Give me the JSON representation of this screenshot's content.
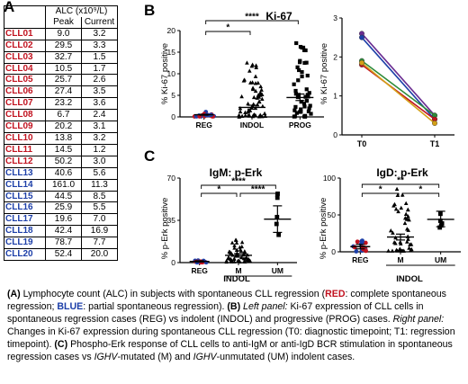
{
  "panels": {
    "a": "A",
    "b": "B",
    "c": "C"
  },
  "table": {
    "header_main": "ALC (x10⁹/L)",
    "header_peak": "Peak",
    "header_current": "Current",
    "rows": [
      {
        "id": "CLL01",
        "peak": "9.0",
        "current": "3.2",
        "group": "red"
      },
      {
        "id": "CLL02",
        "peak": "29.5",
        "current": "3.3",
        "group": "red"
      },
      {
        "id": "CLL03",
        "peak": "32.7",
        "current": "1.5",
        "group": "red"
      },
      {
        "id": "CLL04",
        "peak": "10.5",
        "current": "1.7",
        "group": "red"
      },
      {
        "id": "CLL05",
        "peak": "25.7",
        "current": "2.6",
        "group": "red"
      },
      {
        "id": "CLL06",
        "peak": "27.4",
        "current": "3.5",
        "group": "red"
      },
      {
        "id": "CLL07",
        "peak": "23.2",
        "current": "3.6",
        "group": "red"
      },
      {
        "id": "CLL08",
        "peak": "6.7",
        "current": "2.4",
        "group": "red"
      },
      {
        "id": "CLL09",
        "peak": "20.2",
        "current": "3.1",
        "group": "red"
      },
      {
        "id": "CLL10",
        "peak": "13.8",
        "current": "3.2",
        "group": "red"
      },
      {
        "id": "CLL11",
        "peak": "14.5",
        "current": "1.2",
        "group": "red"
      },
      {
        "id": "CLL12",
        "peak": "50.2",
        "current": "3.0",
        "group": "red"
      },
      {
        "id": "CLL13",
        "peak": "40.6",
        "current": "5.6",
        "group": "blue"
      },
      {
        "id": "CLL14",
        "peak": "161.0",
        "current": "11.3",
        "group": "blue"
      },
      {
        "id": "CLL15",
        "peak": "44.5",
        "current": "8.5",
        "group": "blue"
      },
      {
        "id": "CLL16",
        "peak": "25.9",
        "current": "5.5",
        "group": "blue"
      },
      {
        "id": "CLL17",
        "peak": "19.6",
        "current": "7.0",
        "group": "blue"
      },
      {
        "id": "CLL18",
        "peak": "42.4",
        "current": "16.9",
        "group": "blue"
      },
      {
        "id": "CLL19",
        "peak": "78.7",
        "current": "7.7",
        "group": "blue"
      },
      {
        "id": "CLL20",
        "peak": "52.4",
        "current": "20.0",
        "group": "blue"
      }
    ]
  },
  "colors": {
    "regression_complete": "#c1121f",
    "regression_partial": "#1d3fa8"
  },
  "chart_data": [
    {
      "id": "B-left",
      "type": "scatter",
      "title": "Ki-67",
      "ylabel": "% Ki-67 positive",
      "categories": [
        "REG",
        "INDOL",
        "PROG"
      ],
      "yticks": [
        0,
        5,
        10,
        15,
        20
      ],
      "ylim": [
        0,
        20
      ],
      "significance": [
        {
          "from": "REG",
          "to": "INDOL",
          "label": "*"
        },
        {
          "from": "REG",
          "to": "PROG",
          "label": "****"
        }
      ],
      "summary": [
        {
          "category": "REG",
          "mean": 0.5,
          "sem_low": 0.4,
          "sem_high": 0.6
        },
        {
          "category": "INDOL",
          "mean": 2.2,
          "sem_low": 1.8,
          "sem_high": 2.7
        },
        {
          "category": "PROG",
          "mean": 4.5,
          "sem_low": 3.8,
          "sem_high": 5.3
        }
      ]
    },
    {
      "id": "B-right",
      "type": "line",
      "ylabel": "% Ki-67 positive",
      "x": [
        "T0",
        "T1"
      ],
      "yticks": [
        0,
        1,
        2,
        3
      ],
      "ylim": [
        0,
        3
      ],
      "series": [
        {
          "values": [
            2.6,
            0.5
          ],
          "color": "#6a2c91"
        },
        {
          "values": [
            2.5,
            0.4
          ],
          "color": "#1d3fa8"
        },
        {
          "values": [
            1.9,
            0.5
          ],
          "color": "#2e8b3a"
        },
        {
          "values": [
            1.8,
            0.4
          ],
          "color": "#c1121f"
        },
        {
          "values": [
            1.85,
            0.3
          ],
          "color": "#d4a017"
        }
      ]
    },
    {
      "id": "C-left",
      "type": "scatter",
      "title": "IgM: p-Erk",
      "ylabel": "% p-Erk positive",
      "categories": [
        "REG",
        "M",
        "UM"
      ],
      "group_label": "INDOL",
      "yticks": [
        0,
        35,
        70
      ],
      "ylim": [
        0,
        70
      ],
      "significance": [
        {
          "from": "REG",
          "to": "M",
          "label": "*"
        },
        {
          "from": "REG",
          "to": "UM",
          "label": "****"
        },
        {
          "from": "M",
          "to": "UM",
          "label": "****"
        }
      ],
      "summary": [
        {
          "category": "REG",
          "mean": 1,
          "sem_low": 0.5,
          "sem_high": 1.5
        },
        {
          "category": "M",
          "mean": 6,
          "sem_low": 4.5,
          "sem_high": 7.5
        },
        {
          "category": "UM",
          "mean": 36,
          "sem_low": 25,
          "sem_high": 47
        }
      ]
    },
    {
      "id": "C-right",
      "type": "scatter",
      "title": "IgD: p-Erk",
      "ylabel": "% p-Erk positive",
      "categories": [
        "REG",
        "M",
        "UM"
      ],
      "group_label": "INDOL",
      "yticks": [
        0,
        50,
        100
      ],
      "ylim": [
        0,
        100
      ],
      "significance": [
        {
          "from": "REG",
          "to": "M",
          "label": "*"
        },
        {
          "from": "REG",
          "to": "UM",
          "label": "**"
        },
        {
          "from": "M",
          "to": "UM",
          "label": "*"
        }
      ],
      "summary": [
        {
          "category": "REG",
          "mean": 7,
          "sem_low": 4,
          "sem_high": 10
        },
        {
          "category": "M",
          "mean": 20,
          "sem_low": 16,
          "sem_high": 24
        },
        {
          "category": "UM",
          "mean": 44,
          "sem_low": 34,
          "sem_high": 55
        }
      ]
    }
  ],
  "caption": {
    "p1": "(A)",
    "p2": " Lymphocyte count (ALC) in subjects with spontaneous CLL regression (",
    "red": "RED",
    "p3": ": complete spontaneous regression; ",
    "blue": "BLUE",
    "p4": ": partial spontaneous regression). ",
    "p5": "(B)",
    "p6": " Left panel:",
    "p7": " Ki-67 expression of CLL cells in spontaneous regression cases (REG) vs indolent (INDOL) and progressive (PROG) cases. ",
    "p8": "Right panel:",
    "p9": " Changes in Ki-67 expression during spontaneous CLL regression (T0: diagnostic timepoint; T1: regression timepoint). ",
    "p10": "(C)",
    "p11": " Phospho-Erk response of CLL cells to anti-IgM or anti-IgD BCR stimulation in spontaneous regression cases vs ",
    "p12": "IGHV",
    "p13": "-mutated (M) and ",
    "p14": "IGHV",
    "p15": "-unmutated (UM) indolent cases."
  }
}
